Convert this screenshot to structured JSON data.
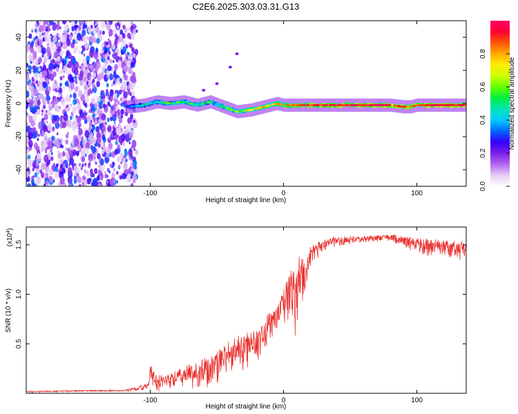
{
  "title": "C2E6.2025.303.03.31.G13",
  "chart_data": [
    {
      "type": "heatmap",
      "name": "spectrogram",
      "xlabel": "Height of straight line (km)",
      "ylabel": "Frequency (Hz)",
      "xlim": [
        -193,
        137
      ],
      "ylim": [
        -50,
        50
      ],
      "xticks": [
        -100,
        0,
        100
      ],
      "yticks": [
        -40,
        -20,
        0,
        20,
        40
      ],
      "colorbar": {
        "label": "Normalized spectral amplitude",
        "range": [
          0,
          1
        ],
        "ticks": [
          0.0,
          0.2,
          0.4,
          0.6,
          0.8
        ],
        "colors": [
          "#ffffff",
          "#e6ccf5",
          "#b366f0",
          "#7a1fe6",
          "#3300ff",
          "#0066ff",
          "#00ccff",
          "#00e6b3",
          "#00ee44",
          "#66ff00",
          "#ccff00",
          "#ffee00",
          "#ffaa00",
          "#ff5500",
          "#ff0033",
          "#ff0066"
        ]
      },
      "noise_region": {
        "x_range": [
          -193,
          -110
        ],
        "amplitude_range": [
          0.05,
          0.35
        ]
      },
      "signal_track": {
        "x": [
          -115,
          -105,
          -95,
          -85,
          -75,
          -65,
          -55,
          -45,
          -35,
          -25,
          -15,
          -5,
          0,
          10,
          20,
          40,
          60,
          80,
          90,
          95,
          100,
          110,
          137
        ],
        "freq": [
          -2,
          -1,
          1,
          0,
          1,
          -1,
          1,
          -2,
          -5,
          -4,
          -2,
          0,
          -1,
          -1,
          -1,
          -1,
          -1,
          -1,
          -2,
          -2,
          -1,
          -1,
          -1
        ],
        "amplitude": [
          0.35,
          0.45,
          0.5,
          0.55,
          0.55,
          0.5,
          0.55,
          0.55,
          0.6,
          0.7,
          0.75,
          0.75,
          0.8,
          0.85,
          0.9,
          0.92,
          0.95,
          0.95,
          0.9,
          0.85,
          0.9,
          0.95,
          0.95
        ]
      },
      "scatter_points": [
        {
          "x": -60,
          "freq": 8
        },
        {
          "x": -50,
          "freq": 12
        },
        {
          "x": -40,
          "freq": 22
        },
        {
          "x": -35,
          "freq": 30
        }
      ]
    },
    {
      "type": "line",
      "name": "snr",
      "xlabel": "Height of straight line (km)",
      "ylabel": "SNR (10 * v/v)",
      "y_multiplier_label": "(x10",
      "y_multiplier_exp": "4",
      "xlim": [
        -193,
        137
      ],
      "ylim": [
        0,
        1.68
      ],
      "xticks": [
        -100,
        0,
        100
      ],
      "yticks": [
        0.5,
        1.0,
        1.5
      ],
      "ytick_labels": [
        "0.5",
        "1.0",
        "1.5"
      ],
      "color": "#e8312e",
      "series": [
        {
          "name": "SNR",
          "x": [
            -193,
            -150,
            -120,
            -105,
            -101,
            -100,
            -95,
            -90,
            -85,
            -80,
            -75,
            -70,
            -65,
            -60,
            -55,
            -50,
            -45,
            -40,
            -35,
            -30,
            -25,
            -20,
            -15,
            -10,
            -5,
            0,
            5,
            8,
            10,
            12,
            15,
            20,
            25,
            30,
            40,
            50,
            60,
            70,
            80,
            90,
            100,
            110,
            120,
            137
          ],
          "y": [
            0.02,
            0.03,
            0.03,
            0.08,
            0.12,
            0.28,
            0.15,
            0.18,
            0.2,
            0.25,
            0.22,
            0.3,
            0.28,
            0.33,
            0.35,
            0.38,
            0.45,
            0.48,
            0.52,
            0.55,
            0.6,
            0.65,
            0.72,
            0.8,
            0.9,
            1.0,
            1.2,
            1.25,
            1.2,
            1.35,
            1.3,
            1.45,
            1.5,
            1.55,
            1.57,
            1.58,
            1.58,
            1.59,
            1.6,
            1.58,
            1.55,
            1.54,
            1.53,
            1.52
          ],
          "noise": [
            0.01,
            0.01,
            0.01,
            0.04,
            0.05,
            0.12,
            0.1,
            0.1,
            0.12,
            0.12,
            0.12,
            0.15,
            0.15,
            0.18,
            0.18,
            0.2,
            0.2,
            0.2,
            0.22,
            0.22,
            0.2,
            0.2,
            0.2,
            0.18,
            0.15,
            0.2,
            0.3,
            0.45,
            0.5,
            0.3,
            0.25,
            0.12,
            0.1,
            0.08,
            0.06,
            0.05,
            0.04,
            0.04,
            0.04,
            0.06,
            0.1,
            0.1,
            0.1,
            0.12
          ]
        }
      ]
    }
  ]
}
